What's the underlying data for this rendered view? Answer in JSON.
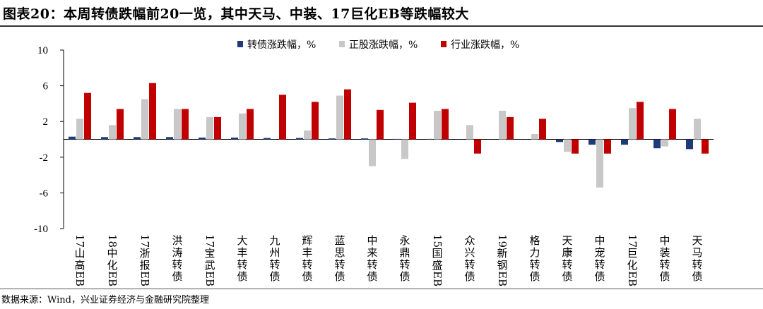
{
  "title": "图表20：本周转债跌幅前20一览，其中天马、中装、17巨化EB等跌幅较大",
  "source": "数据来源：Wind，兴业证券经济与金融研究院整理",
  "colors": {
    "bond": "#1f3a78",
    "stock": "#c8c8c8",
    "industry": "#c00000"
  },
  "chart_data": {
    "type": "bar",
    "title": "",
    "xlabel": "",
    "ylabel": "",
    "ylim": [
      -10,
      10
    ],
    "yticks": [
      "10",
      "6",
      "2",
      "-2",
      "-6",
      "-10"
    ],
    "ytick_values": [
      10,
      6,
      2,
      -2,
      -6,
      -10
    ],
    "legend_position": "top",
    "categories": [
      "17山高EB",
      "18中化EB",
      "17浙报EB",
      "洪涛转债",
      "17宝武EB",
      "大丰转债",
      "九州转债",
      "辉丰转债",
      "蓝思转债",
      "中来转债",
      "永鼎转债",
      "15国盛EB",
      "众兴转债",
      "19新钢EB",
      "格力转债",
      "天康转债",
      "中宠转债",
      "17巨化EB",
      "中装转债",
      "天马转债"
    ],
    "series": [
      {
        "name": "转债涨跌幅，%",
        "color_key": "bond",
        "values": [
          0.3,
          0.25,
          0.25,
          0.25,
          0.2,
          0.2,
          0.15,
          0.15,
          0.1,
          0.1,
          0.05,
          0.05,
          0,
          0,
          0,
          -0.3,
          -0.6,
          -0.6,
          -1.0,
          -1.1
        ]
      },
      {
        "name": "正股涨跌幅，%",
        "color_key": "stock",
        "values": [
          2.3,
          1.6,
          4.5,
          3.4,
          2.5,
          2.9,
          0,
          1.0,
          4.9,
          -3.0,
          -2.2,
          3.2,
          1.6,
          3.2,
          0.6,
          -1.4,
          -5.4,
          3.5,
          -0.8,
          2.3
        ]
      },
      {
        "name": "行业涨跌幅，%",
        "color_key": "industry",
        "values": [
          5.2,
          3.4,
          6.3,
          3.4,
          2.5,
          3.4,
          5.0,
          4.2,
          5.6,
          3.3,
          4.1,
          3.4,
          -1.6,
          2.5,
          2.3,
          -1.6,
          -1.6,
          4.2,
          3.4,
          -1.6
        ]
      }
    ]
  }
}
